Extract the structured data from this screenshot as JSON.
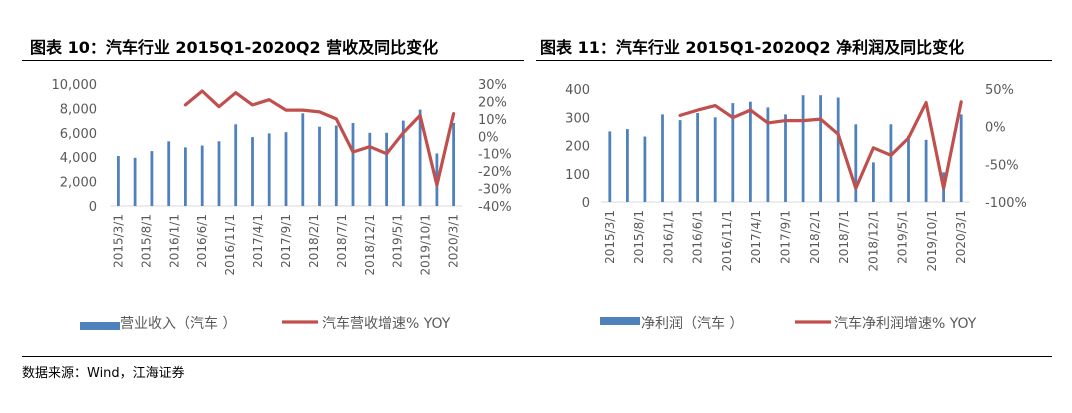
{
  "figures": [
    {
      "title": "图表 10：汽车行业 2015Q1-2020Q2 营收及同比变化"
    },
    {
      "title": "图表 11：汽车行业 2015Q1-2020Q2 净利润及同比变化"
    }
  ],
  "source": "数据来源：Wind，江海证券",
  "colors": {
    "bar": "#4F81BD",
    "line": "#C0504D",
    "axis": "#D9D9D9",
    "text": "#595959"
  },
  "chart_data": [
    {
      "type": "bar",
      "x_tick_labels": [
        "2015/3/1",
        "2015/8/1",
        "2016/1/1",
        "2016/6/1",
        "2016/11/1",
        "2017/4/1",
        "2017/9/1",
        "2018/2/1",
        "2018/7/1",
        "2018/12/1",
        "2019/5/1",
        "2019/10/1",
        "2020/3/1"
      ],
      "y_left_ticks": [
        "0",
        "2,000",
        "4,000",
        "6,000",
        "8,000",
        "10,000"
      ],
      "y_right_ticks": [
        "30%",
        "20%",
        "10%",
        "0%",
        "-10%",
        "-20%",
        "-30%",
        "-40%"
      ],
      "ylim_left": [
        0,
        10000
      ],
      "ylim_right": [
        -40,
        30
      ],
      "bar_series": {
        "name": "营业收入（汽车 ）",
        "values": [
          4100,
          3950,
          4500,
          5300,
          4800,
          4950,
          5300,
          6700,
          5650,
          5950,
          6050,
          7600,
          6500,
          6600,
          6800,
          6000,
          6000,
          7000,
          7900,
          4300,
          6800
        ]
      },
      "line_series": {
        "name": "汽车营收增速% YOY",
        "start_index": 4,
        "values": [
          18,
          26,
          17,
          25,
          18,
          21,
          15,
          15,
          14,
          10,
          -9,
          -6,
          -10,
          2,
          12,
          -28,
          13
        ]
      }
    },
    {
      "type": "bar",
      "x_tick_labels": [
        "2015/3/1",
        "2015/8/1",
        "2016/1/1",
        "2016/6/1",
        "2016/11/1",
        "2017/4/1",
        "2017/9/1",
        "2018/2/1",
        "2018/7/1",
        "2018/12/1",
        "2019/5/1",
        "2019/10/1",
        "2020/3/1"
      ],
      "y_left_ticks": [
        "0",
        "100",
        "200",
        "300",
        "400"
      ],
      "y_right_ticks": [
        "50%",
        "0%",
        "-50%",
        "-100%"
      ],
      "ylim_left": [
        0,
        400
      ],
      "ylim_right": [
        -100,
        50
      ],
      "bar_series": {
        "name": "净利润（汽车 ）",
        "values": [
          250,
          258,
          232,
          310,
          290,
          315,
          300,
          350,
          355,
          335,
          310,
          378,
          378,
          370,
          275,
          140,
          275,
          235,
          220,
          105,
          310
        ]
      },
      "line_series": {
        "name": "汽车净利润增速% YOY",
        "start_index": 4,
        "values": [
          15,
          22,
          28,
          12,
          22,
          5,
          8,
          8,
          10,
          -10,
          -82,
          -28,
          -38,
          -15,
          32,
          -82,
          33
        ]
      }
    }
  ]
}
